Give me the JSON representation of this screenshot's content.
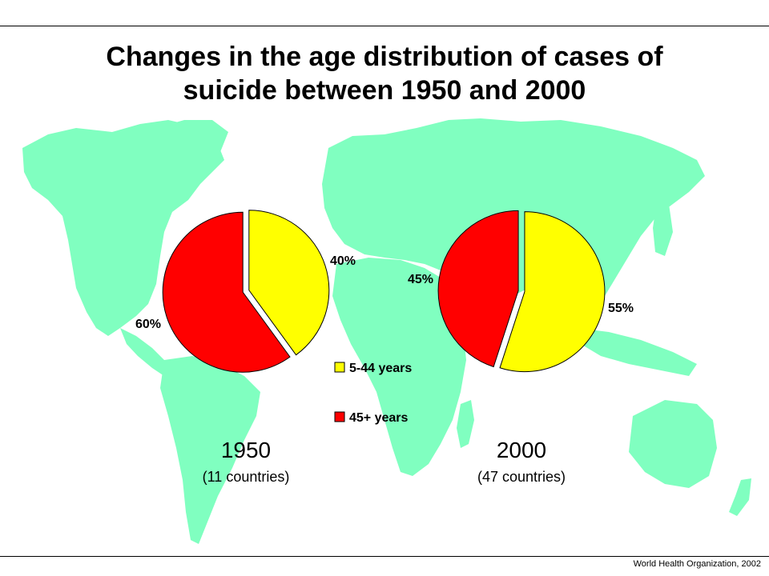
{
  "title": "Changes in the age distribution of cases of\nsuicide between 1950 and 2000",
  "credit": "World Health Organization, 2002",
  "colors": {
    "young": "#ffff00",
    "old": "#ff0000",
    "map": "#80ffc0"
  },
  "legend": [
    {
      "label": "5-44 years",
      "color": "#ffff00"
    },
    {
      "label": "45+ years",
      "color": "#ff0000"
    }
  ],
  "chart_data": [
    {
      "type": "pie",
      "title": "1950",
      "subtitle": "(11 countries)",
      "slices": [
        {
          "name": "5-44 years",
          "value": 40,
          "label": "40%",
          "color": "#ffff00"
        },
        {
          "name": "45+ years",
          "value": 60,
          "label": "60%",
          "color": "#ff0000"
        }
      ]
    },
    {
      "type": "pie",
      "title": "2000",
      "subtitle": "(47 countries)",
      "slices": [
        {
          "name": "5-44 years",
          "value": 55,
          "label": "55%",
          "color": "#ffff00"
        },
        {
          "name": "45+ years",
          "value": 45,
          "label": "45%",
          "color": "#ff0000"
        }
      ]
    }
  ]
}
